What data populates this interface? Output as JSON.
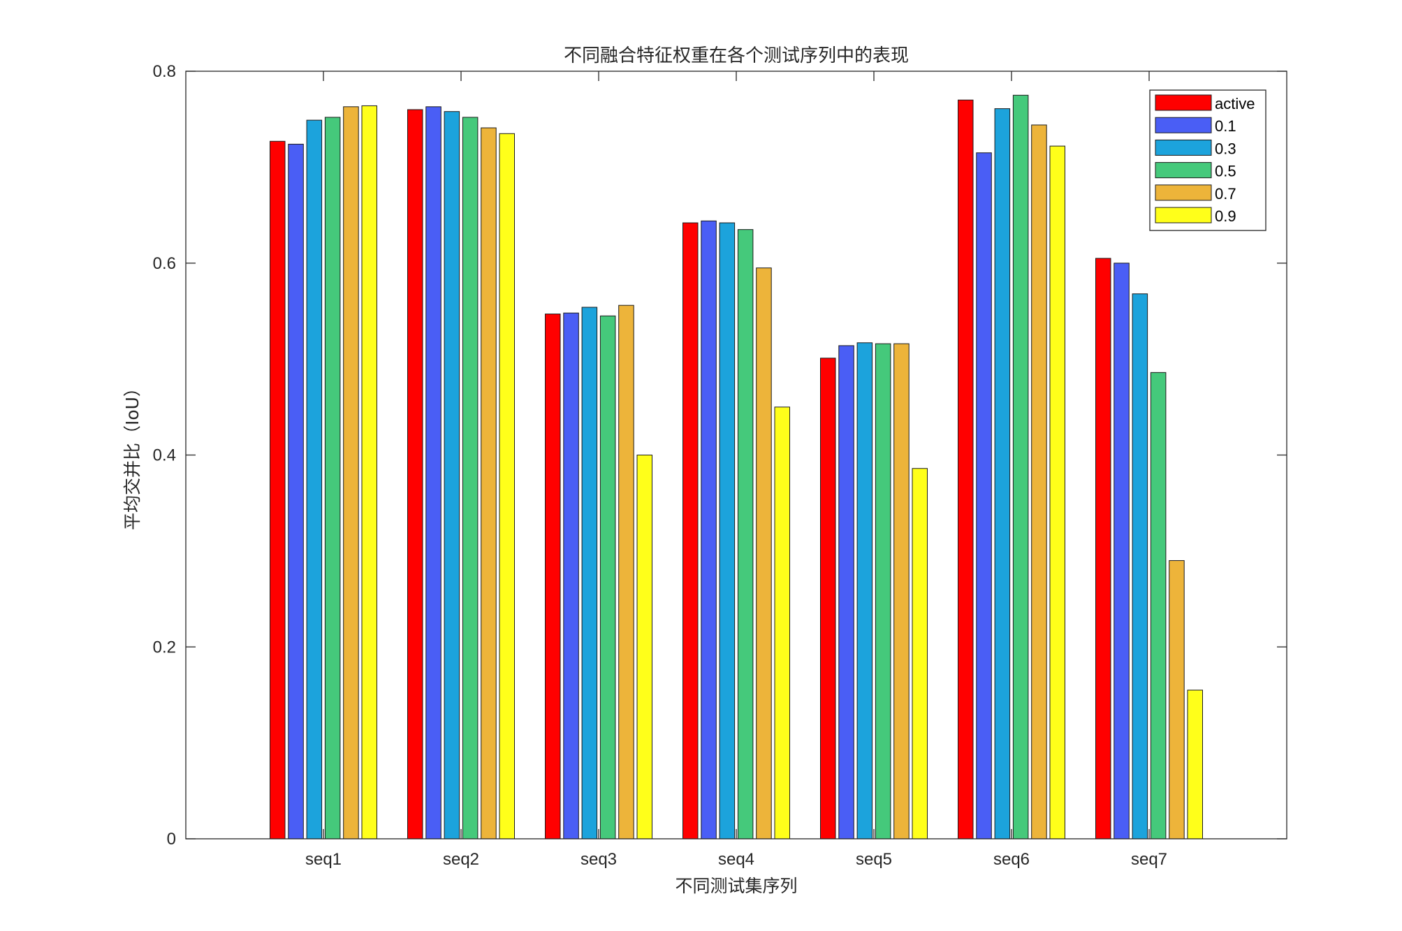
{
  "chart_data": {
    "type": "bar",
    "title": "不同融合特征权重在各个测试序列中的表现",
    "xlabel": "不同测试集序列",
    "ylabel": "平均交并比（IoU）",
    "ylim": [
      0,
      0.8
    ],
    "yticks": [
      "0",
      "0.2",
      "0.4",
      "0.6",
      "0.8"
    ],
    "categories": [
      "seq1",
      "seq2",
      "seq3",
      "seq4",
      "seq5",
      "seq6",
      "seq7"
    ],
    "legend_position": "top-right",
    "series": [
      {
        "name": "active",
        "color": "#ff0000",
        "values": [
          0.727,
          0.76,
          0.547,
          0.642,
          0.501,
          0.77,
          0.605
        ]
      },
      {
        "name": "0.1",
        "color": "#4a5ef5",
        "values": [
          0.724,
          0.763,
          0.548,
          0.644,
          0.514,
          0.715,
          0.6
        ]
      },
      {
        "name": "0.3",
        "color": "#1ca3dc",
        "values": [
          0.749,
          0.758,
          0.554,
          0.642,
          0.517,
          0.761,
          0.568
        ]
      },
      {
        "name": "0.5",
        "color": "#45c97b",
        "values": [
          0.752,
          0.752,
          0.545,
          0.635,
          0.516,
          0.775,
          0.486
        ]
      },
      {
        "name": "0.7",
        "color": "#edb43a",
        "values": [
          0.763,
          0.741,
          0.556,
          0.595,
          0.516,
          0.744,
          0.29
        ]
      },
      {
        "name": "0.9",
        "color": "#ffff1a",
        "values": [
          0.764,
          0.735,
          0.4,
          0.45,
          0.386,
          0.722,
          0.155
        ]
      }
    ]
  }
}
